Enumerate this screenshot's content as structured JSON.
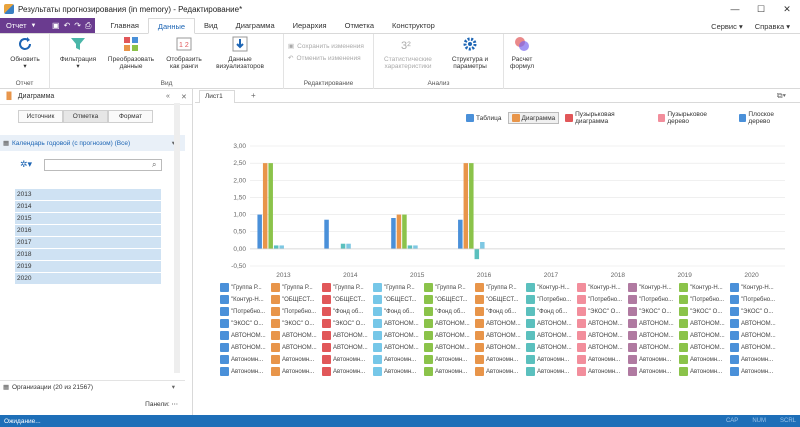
{
  "window": {
    "title": "Результаты прогнозирования (in memory) - Редактирование*"
  },
  "ribbon_tabs": {
    "menu": "Отчет",
    "tabs": [
      "Главная",
      "Данные",
      "Вид",
      "Диаграмма",
      "Иерархия",
      "Отметка",
      "Конструктор"
    ],
    "active": "Данные",
    "right": [
      "Сервис",
      "Справка"
    ]
  },
  "ribbon": {
    "buttons": {
      "refresh": "Обновить",
      "filter": "Фильтрация",
      "transform": "Преобразовать данные",
      "rank": "Отобразить как ранги",
      "viz": "Данные визуализаторов",
      "save_changes": "Сохранить изменения",
      "cancel_changes": "Отменить изменения",
      "stat": "Статистические характеристики",
      "structure": "Структура и параметры",
      "formula": "Расчет формул"
    },
    "groups": {
      "report": "Отчет",
      "view": "Вид",
      "edit": "Редактирование",
      "analysis": "Анализ"
    }
  },
  "left_panel": {
    "title": "Диаграмма",
    "tabs": [
      "Источник",
      "Отметка",
      "Формат"
    ],
    "active_tab": "Отметка",
    "calendar": "Календарь годовой (с прогнозом) (Все)",
    "search_placeholder": "",
    "years": [
      "2013",
      "2014",
      "2015",
      "2016",
      "2017",
      "2018",
      "2019",
      "2020"
    ],
    "org": "Организации (20 из 21567)",
    "panels": "Панели:"
  },
  "doc": {
    "tab": "Лист1",
    "add": "+"
  },
  "view_toolbar": {
    "items": [
      "Таблица",
      "Диаграмма",
      "Пузырьковая диаграмма",
      "Пузырьковое дерево",
      "Плоское дерево"
    ],
    "active": "Диаграмма"
  },
  "chart_data": {
    "type": "bar",
    "categories": [
      "2013",
      "2014",
      "2015",
      "2016",
      "2017",
      "2018",
      "2019",
      "2020"
    ],
    "ylim": [
      -0.5,
      3.0
    ],
    "yticks": [
      "3,00",
      "2,50",
      "2,00",
      "1,50",
      "1,00",
      "0,50",
      "0,00",
      "-0,50"
    ],
    "grid": true,
    "series": [
      {
        "color": "#4a90d9",
        "values": [
          1.0,
          0.85,
          0.9,
          0.85,
          0,
          0,
          0,
          0
        ]
      },
      {
        "color": "#e8954a",
        "values": [
          2.5,
          0.0,
          1.0,
          2.5,
          0,
          0,
          0,
          0
        ]
      },
      {
        "color": "#8bc34a",
        "values": [
          2.5,
          0.0,
          1.0,
          2.5,
          0,
          0,
          0,
          0
        ]
      },
      {
        "color": "#5bc0be",
        "values": [
          0.1,
          0.15,
          0.1,
          -0.3,
          0,
          0,
          0,
          0
        ]
      },
      {
        "color": "#7ec8e3",
        "values": [
          0.1,
          0.15,
          0.1,
          0.2,
          0,
          0,
          0,
          0
        ]
      }
    ]
  },
  "legend": [
    {
      "c": "#4a90d9",
      "t": "\"Группа Р..."
    },
    {
      "c": "#e8954a",
      "t": "\"Группа Р..."
    },
    {
      "c": "#e15759",
      "t": "\"Группа Р..."
    },
    {
      "c": "#76c7e8",
      "t": "\"Группа Р..."
    },
    {
      "c": "#8bc34a",
      "t": "\"Группа Р..."
    },
    {
      "c": "#e8954a",
      "t": "\"Группа Р..."
    },
    {
      "c": "#5bc0be",
      "t": "\"Контур-Н..."
    },
    {
      "c": "#f28e9c",
      "t": "\"Контур-Н..."
    },
    {
      "c": "#b07aa1",
      "t": "\"Контур-Н..."
    },
    {
      "c": "#8bc34a",
      "t": "\"Контур-Н..."
    },
    {
      "c": "#4a90d9",
      "t": "\"Контур-Н..."
    },
    {
      "c": "#4a90d9",
      "t": "\"Контур-Н..."
    },
    {
      "c": "#e8954a",
      "t": "\"ОБЩЕСТ..."
    },
    {
      "c": "#e15759",
      "t": "\"ОБЩЕСТ..."
    },
    {
      "c": "#76c7e8",
      "t": "\"ОБЩЕСТ..."
    },
    {
      "c": "#8bc34a",
      "t": "\"ОБЩЕСТ..."
    },
    {
      "c": "#e8954a",
      "t": "\"ОБЩЕСТ..."
    },
    {
      "c": "#5bc0be",
      "t": "\"Потребно..."
    },
    {
      "c": "#f28e9c",
      "t": "\"Потребно..."
    },
    {
      "c": "#b07aa1",
      "t": "\"Потребно..."
    },
    {
      "c": "#8bc34a",
      "t": "\"Потребно..."
    },
    {
      "c": "#4a90d9",
      "t": "\"Потребно..."
    },
    {
      "c": "#4a90d9",
      "t": "\"Потребно..."
    },
    {
      "c": "#e8954a",
      "t": "\"Потребно..."
    },
    {
      "c": "#e15759",
      "t": "\"Фонд об..."
    },
    {
      "c": "#76c7e8",
      "t": "\"Фонд об..."
    },
    {
      "c": "#8bc34a",
      "t": "\"Фонд об..."
    },
    {
      "c": "#e8954a",
      "t": "\"Фонд об..."
    },
    {
      "c": "#5bc0be",
      "t": "\"Фонд об..."
    },
    {
      "c": "#f28e9c",
      "t": "\"ЭКОС\" О..."
    },
    {
      "c": "#b07aa1",
      "t": "\"ЭКОС\" О..."
    },
    {
      "c": "#8bc34a",
      "t": "\"ЭКОС\" О..."
    },
    {
      "c": "#4a90d9",
      "t": "\"ЭКОС\" О..."
    },
    {
      "c": "#4a90d9",
      "t": "\"ЭКОС\" О..."
    },
    {
      "c": "#e8954a",
      "t": "\"ЭКОС\" О..."
    },
    {
      "c": "#e15759",
      "t": "\"ЭКОС\" О..."
    },
    {
      "c": "#76c7e8",
      "t": "АВТОНОМ..."
    },
    {
      "c": "#8bc34a",
      "t": "АВТОНОМ..."
    },
    {
      "c": "#e8954a",
      "t": "АВТОНОМ..."
    },
    {
      "c": "#5bc0be",
      "t": "АВТОНОМ..."
    },
    {
      "c": "#f28e9c",
      "t": "АВТОНОМ..."
    },
    {
      "c": "#b07aa1",
      "t": "АВТОНОМ..."
    },
    {
      "c": "#8bc34a",
      "t": "АВТОНОМ..."
    },
    {
      "c": "#4a90d9",
      "t": "АВТОНОМ..."
    },
    {
      "c": "#4a90d9",
      "t": "АВТОНОМ..."
    },
    {
      "c": "#e8954a",
      "t": "АВТОНОМ..."
    },
    {
      "c": "#e15759",
      "t": "АВТОНОМ..."
    },
    {
      "c": "#76c7e8",
      "t": "АВТОНОМ..."
    },
    {
      "c": "#8bc34a",
      "t": "АВТОНОМ..."
    },
    {
      "c": "#e8954a",
      "t": "АВТОНОМ..."
    },
    {
      "c": "#5bc0be",
      "t": "АВТОНОМ..."
    },
    {
      "c": "#f28e9c",
      "t": "АВТОНОМ..."
    },
    {
      "c": "#b07aa1",
      "t": "АВТОНОМ..."
    },
    {
      "c": "#8bc34a",
      "t": "АВТОНОМ..."
    },
    {
      "c": "#4a90d9",
      "t": "АВТОНОМ..."
    },
    {
      "c": "#4a90d9",
      "t": "АВТОНОМ..."
    },
    {
      "c": "#e8954a",
      "t": "АВТОНОМ..."
    },
    {
      "c": "#e15759",
      "t": "АВТОНОМ..."
    },
    {
      "c": "#76c7e8",
      "t": "АВТОНОМ..."
    },
    {
      "c": "#8bc34a",
      "t": "АВТОНОМ..."
    },
    {
      "c": "#e8954a",
      "t": "АВТОНОМ..."
    },
    {
      "c": "#5bc0be",
      "t": "АВТОНОМ..."
    },
    {
      "c": "#f28e9c",
      "t": "АВТОНОМ..."
    },
    {
      "c": "#b07aa1",
      "t": "АВТОНОМ..."
    },
    {
      "c": "#8bc34a",
      "t": "АВТОНОМ..."
    },
    {
      "c": "#4a90d9",
      "t": "АВТОНОМ..."
    },
    {
      "c": "#4a90d9",
      "t": "Автономн..."
    },
    {
      "c": "#e8954a",
      "t": "Автономн..."
    },
    {
      "c": "#e15759",
      "t": "Автономн..."
    },
    {
      "c": "#76c7e8",
      "t": "Автономн..."
    },
    {
      "c": "#8bc34a",
      "t": "Автономн..."
    },
    {
      "c": "#e8954a",
      "t": "Автономн..."
    },
    {
      "c": "#5bc0be",
      "t": "Автономн..."
    },
    {
      "c": "#f28e9c",
      "t": "Автономн..."
    },
    {
      "c": "#b07aa1",
      "t": "Автономн..."
    },
    {
      "c": "#8bc34a",
      "t": "Автономн..."
    },
    {
      "c": "#4a90d9",
      "t": "Автономн..."
    },
    {
      "c": "#4a90d9",
      "t": "Автономн..."
    },
    {
      "c": "#e8954a",
      "t": "Автономн..."
    },
    {
      "c": "#e15759",
      "t": "Автономн..."
    },
    {
      "c": "#76c7e8",
      "t": "Автономн..."
    },
    {
      "c": "#8bc34a",
      "t": "Автономн..."
    },
    {
      "c": "#e8954a",
      "t": "Автономн..."
    },
    {
      "c": "#5bc0be",
      "t": "Автономн..."
    },
    {
      "c": "#f28e9c",
      "t": "Автономн..."
    },
    {
      "c": "#b07aa1",
      "t": "Автономн..."
    },
    {
      "c": "#8bc34a",
      "t": "Автономн..."
    },
    {
      "c": "#4a90d9",
      "t": "Автономн..."
    }
  ],
  "status": {
    "text": "Ожидание...",
    "indicators": [
      "CAP",
      "NUM",
      "SCRL"
    ]
  }
}
